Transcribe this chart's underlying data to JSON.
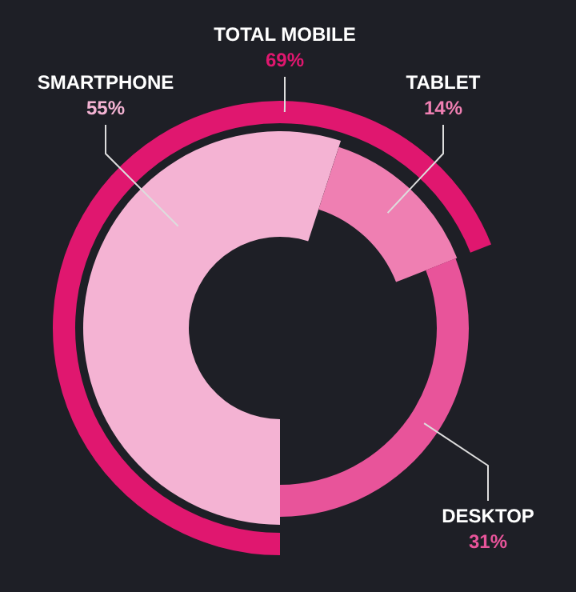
{
  "chart_data": {
    "type": "donut",
    "categories": [
      "SMARTPHONE",
      "TABLET",
      "DESKTOP"
    ],
    "values": [
      55,
      14,
      31
    ],
    "colors": [
      "#f4b3d3",
      "#ef7fb2",
      "#e8549a"
    ],
    "value_labels": [
      "55%",
      "14%",
      "31%"
    ],
    "series": [
      {
        "name": "TOTAL MOBILE",
        "colors": [
          "#e0176f",
          null,
          null
        ],
        "values": [
          69,
          null,
          null
        ],
        "value_labels": [
          "69%",
          null,
          null
        ]
      }
    ],
    "legend": false
  }
}
